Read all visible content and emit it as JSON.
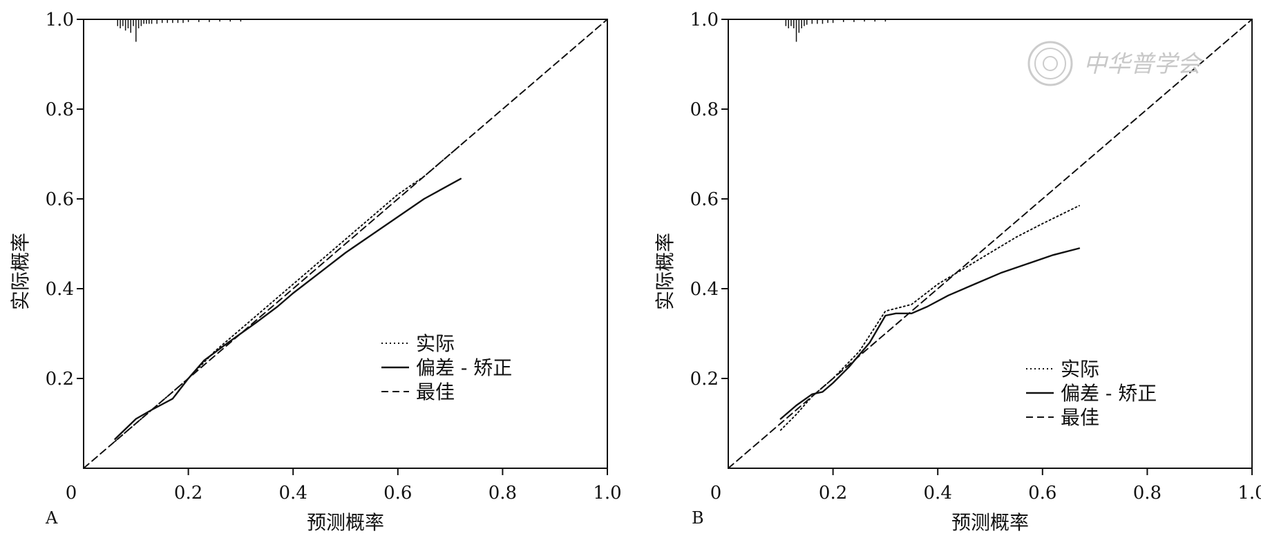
{
  "watermark": {
    "text": "中华普学会",
    "color": "#cccccc"
  },
  "chart_data": [
    {
      "type": "line",
      "panel_label": "A",
      "xlabel": "预测概率",
      "ylabel": "实际概率",
      "xlim": [
        0,
        1.0
      ],
      "ylim": [
        0,
        1.0
      ],
      "x_ticks": [
        "0",
        "0.2",
        "0.4",
        "0.6",
        "0.8",
        "1.0"
      ],
      "y_ticks": [
        "0.2",
        "0.4",
        "0.6",
        "0.8",
        "1.0"
      ],
      "legend_position": "lower-right",
      "series": [
        {
          "name": "实际",
          "style": "dotted",
          "x": [
            0.06,
            0.1,
            0.15,
            0.2,
            0.25,
            0.3,
            0.35,
            0.4,
            0.45,
            0.5,
            0.55,
            0.6,
            0.65,
            0.72
          ],
          "y": [
            0.06,
            0.1,
            0.15,
            0.2,
            0.26,
            0.31,
            0.36,
            0.41,
            0.46,
            0.51,
            0.56,
            0.61,
            0.65,
            0.72
          ]
        },
        {
          "name": "偏差 - 矫正",
          "style": "solid",
          "x": [
            0.06,
            0.1,
            0.13,
            0.17,
            0.2,
            0.23,
            0.27,
            0.3,
            0.33,
            0.37,
            0.4,
            0.45,
            0.5,
            0.55,
            0.6,
            0.65,
            0.72
          ],
          "y": [
            0.065,
            0.11,
            0.13,
            0.155,
            0.2,
            0.24,
            0.275,
            0.3,
            0.325,
            0.36,
            0.39,
            0.435,
            0.48,
            0.52,
            0.56,
            0.6,
            0.645
          ]
        },
        {
          "name": "最佳",
          "style": "dashed",
          "x": [
            0,
            1.0
          ],
          "y": [
            0,
            1.0
          ]
        }
      ],
      "rug_top": [
        0.065,
        0.07,
        0.075,
        0.08,
        0.085,
        0.09,
        0.095,
        0.1,
        0.105,
        0.11,
        0.115,
        0.12,
        0.125,
        0.13,
        0.14,
        0.15,
        0.16,
        0.17,
        0.18,
        0.19,
        0.2,
        0.22,
        0.24,
        0.26,
        0.28,
        0.3
      ],
      "rug_len": [
        0.015,
        0.02,
        0.015,
        0.025,
        0.02,
        0.03,
        0.015,
        0.05,
        0.02,
        0.015,
        0.01,
        0.01,
        0.01,
        0.01,
        0.01,
        0.008,
        0.008,
        0.008,
        0.008,
        0.008,
        0.006,
        0.006,
        0.006,
        0.005,
        0.005,
        0.005
      ]
    },
    {
      "type": "line",
      "panel_label": "B",
      "xlabel": "预测概率",
      "ylabel": "实际概率",
      "xlim": [
        0,
        1.0
      ],
      "ylim": [
        0,
        1.0
      ],
      "x_ticks": [
        "0",
        "0.2",
        "0.4",
        "0.6",
        "0.8",
        "1.0"
      ],
      "y_ticks": [
        "0.2",
        "0.4",
        "0.6",
        "0.8",
        "1.0"
      ],
      "legend_position": "lower-left",
      "series": [
        {
          "name": "实际",
          "style": "dotted",
          "x": [
            0.1,
            0.13,
            0.16,
            0.2,
            0.25,
            0.3,
            0.35,
            0.4,
            0.45,
            0.5,
            0.55,
            0.6,
            0.67
          ],
          "y": [
            0.085,
            0.12,
            0.16,
            0.2,
            0.26,
            0.35,
            0.365,
            0.41,
            0.445,
            0.48,
            0.515,
            0.545,
            0.585
          ]
        },
        {
          "name": "偏差 - 矫正",
          "style": "solid",
          "x": [
            0.1,
            0.13,
            0.16,
            0.18,
            0.2,
            0.23,
            0.27,
            0.3,
            0.32,
            0.35,
            0.38,
            0.42,
            0.47,
            0.52,
            0.57,
            0.62,
            0.67
          ],
          "y": [
            0.11,
            0.14,
            0.165,
            0.17,
            0.19,
            0.225,
            0.28,
            0.34,
            0.345,
            0.345,
            0.36,
            0.385,
            0.41,
            0.435,
            0.455,
            0.475,
            0.49
          ]
        },
        {
          "name": "最佳",
          "style": "dashed",
          "x": [
            0,
            1.0
          ],
          "y": [
            0,
            1.0
          ]
        }
      ],
      "rug_top": [
        0.11,
        0.115,
        0.12,
        0.125,
        0.13,
        0.135,
        0.14,
        0.145,
        0.15,
        0.16,
        0.17,
        0.18,
        0.19,
        0.2,
        0.22,
        0.24,
        0.26,
        0.28,
        0.3
      ],
      "rug_len": [
        0.015,
        0.02,
        0.015,
        0.02,
        0.05,
        0.03,
        0.02,
        0.015,
        0.012,
        0.01,
        0.01,
        0.01,
        0.008,
        0.008,
        0.006,
        0.006,
        0.005,
        0.005,
        0.005
      ]
    }
  ]
}
